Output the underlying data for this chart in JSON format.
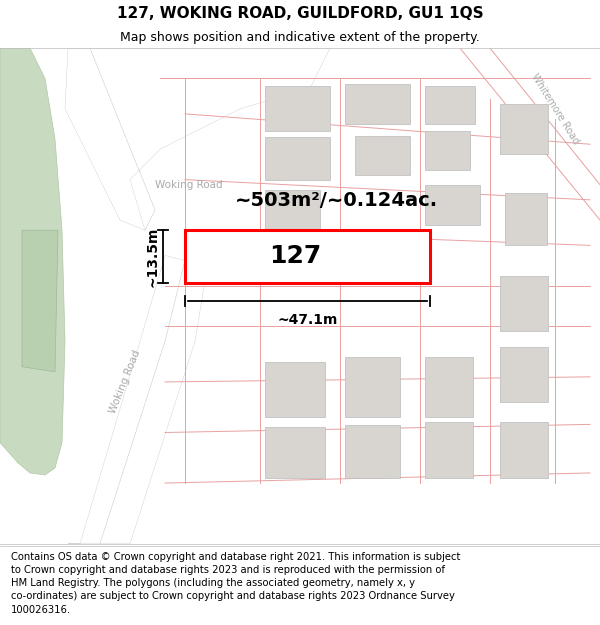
{
  "title": "127, WOKING ROAD, GUILDFORD, GU1 1QS",
  "subtitle": "Map shows position and indicative extent of the property.",
  "footer": "Contains OS data © Crown copyright and database right 2021. This information is subject\nto Crown copyright and database rights 2023 and is reproduced with the permission of\nHM Land Registry. The polygons (including the associated geometry, namely x, y\nco-ordinates) are subject to Crown copyright and database rights 2023 Ordnance Survey\n100026316.",
  "map_bg": "#f2efea",
  "road_surface": "#ffffff",
  "plot_outline_color": "#e8a0a0",
  "highlight_color": "#ff0000",
  "green_area_color": "#c8dbc0",
  "green_inner_color": "#b8cfb0",
  "gray_block_color": "#d8d5d0",
  "gray_block_edge": "#bbbbbb",
  "road_text_color": "#aaaaaa",
  "dim_line_color": "#000000",
  "dimension_label_width": "~47.1m",
  "dimension_label_height": "~13.5m",
  "area_label": "~503m²/~0.124ac.",
  "house_number": "127",
  "road_label_upper": "Woking Road",
  "road_label_lower": "Woking Road",
  "road_label_right": "Whitemore Road",
  "footer_fontsize": 7.2,
  "title_fontsize": 11,
  "subtitle_fontsize": 9
}
